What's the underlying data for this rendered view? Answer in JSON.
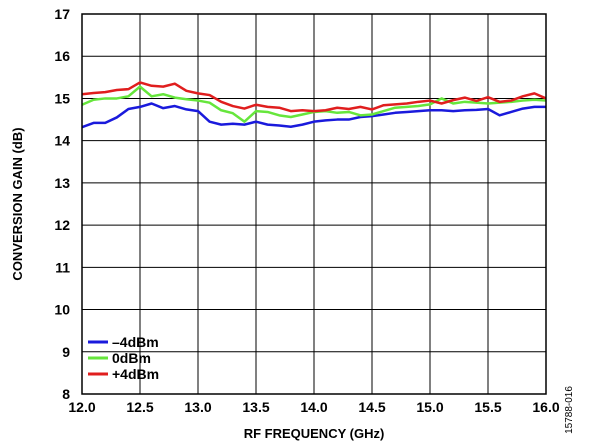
{
  "chart_data": {
    "type": "line",
    "xlabel": "RF FREQUENCY (GHz)",
    "ylabel": "CONVERSION GAIN (dB)",
    "xlim": [
      12.0,
      16.0
    ],
    "ylim": [
      8,
      17
    ],
    "x_ticks": [
      "12.0",
      "12.5",
      "13.0",
      "13.5",
      "14.0",
      "14.5",
      "15.0",
      "15.5",
      "16.0"
    ],
    "y_ticks": [
      "8",
      "9",
      "10",
      "11",
      "12",
      "13",
      "14",
      "15",
      "16",
      "17"
    ],
    "grid": true,
    "legend_position": "bottom-left",
    "figure_id": "15788-016",
    "x": [
      12.0,
      12.1,
      12.2,
      12.3,
      12.4,
      12.5,
      12.6,
      12.7,
      12.8,
      12.9,
      13.0,
      13.1,
      13.2,
      13.3,
      13.4,
      13.5,
      13.6,
      13.7,
      13.8,
      13.9,
      14.0,
      14.1,
      14.2,
      14.3,
      14.4,
      14.5,
      14.6,
      14.7,
      14.8,
      14.9,
      15.0,
      15.1,
      15.2,
      15.3,
      15.4,
      15.5,
      15.6,
      15.7,
      15.8,
      15.9,
      16.0
    ],
    "series": [
      {
        "name": "–4dBm",
        "color": "#1a1adc",
        "values": [
          14.32,
          14.42,
          14.42,
          14.55,
          14.75,
          14.8,
          14.88,
          14.77,
          14.82,
          14.74,
          14.7,
          14.45,
          14.38,
          14.4,
          14.38,
          14.45,
          14.38,
          14.36,
          14.33,
          14.38,
          14.45,
          14.48,
          14.5,
          14.5,
          14.56,
          14.58,
          14.62,
          14.66,
          14.68,
          14.7,
          14.72,
          14.72,
          14.7,
          14.72,
          14.73,
          14.75,
          14.6,
          14.68,
          14.76,
          14.8,
          14.8
        ]
      },
      {
        "name": "0dBm",
        "color": "#66e63c",
        "values": [
          14.85,
          14.97,
          15.0,
          15.0,
          15.05,
          15.28,
          15.05,
          15.1,
          15.02,
          14.98,
          14.95,
          14.9,
          14.72,
          14.65,
          14.45,
          14.7,
          14.68,
          14.6,
          14.56,
          14.62,
          14.68,
          14.7,
          14.66,
          14.68,
          14.6,
          14.62,
          14.7,
          14.78,
          14.8,
          14.82,
          14.86,
          15.0,
          14.88,
          14.92,
          14.9,
          14.88,
          14.9,
          14.92,
          14.95,
          14.97,
          14.95
        ]
      },
      {
        "name": "+4dBm",
        "color": "#e01e1e",
        "values": [
          15.1,
          15.13,
          15.15,
          15.2,
          15.22,
          15.38,
          15.3,
          15.28,
          15.35,
          15.18,
          15.12,
          15.08,
          14.92,
          14.82,
          14.76,
          14.85,
          14.8,
          14.78,
          14.7,
          14.72,
          14.7,
          14.72,
          14.78,
          14.75,
          14.8,
          14.74,
          14.84,
          14.86,
          14.88,
          14.92,
          14.95,
          14.88,
          14.96,
          15.02,
          14.94,
          15.03,
          14.92,
          14.95,
          15.05,
          15.12,
          15.0
        ]
      }
    ]
  }
}
